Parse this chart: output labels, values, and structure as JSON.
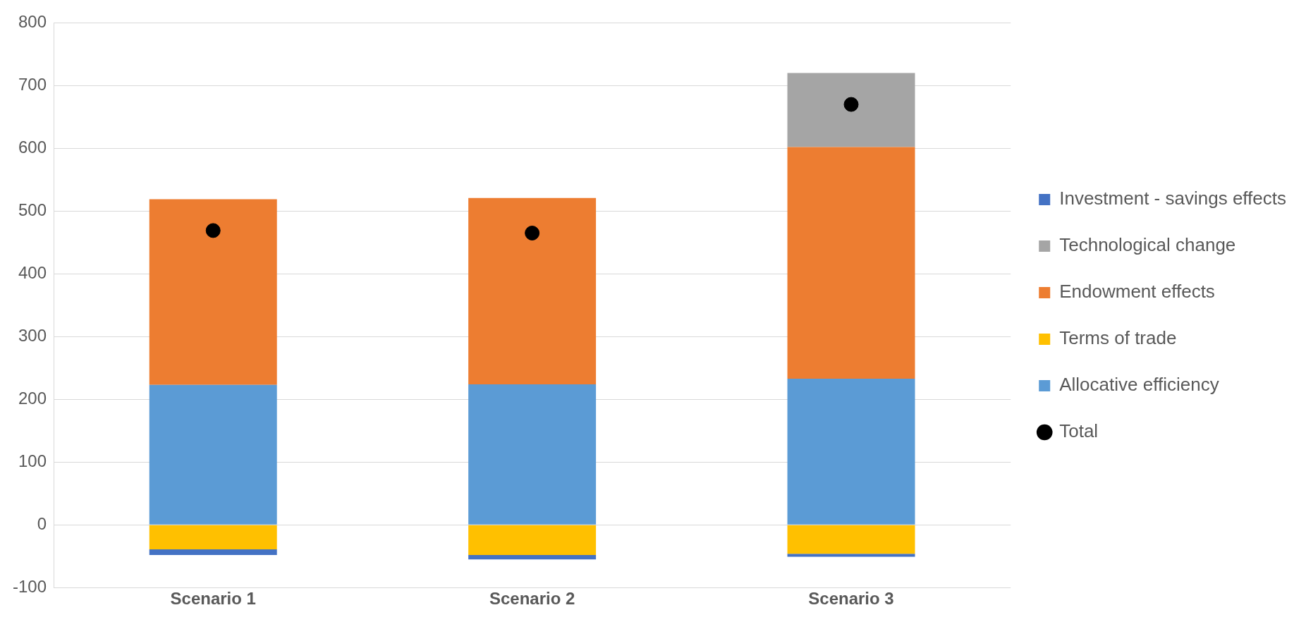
{
  "chart_data": {
    "type": "bar",
    "stacked": true,
    "categories": [
      "Scenario 1",
      "Scenario 2",
      "Scenario 3"
    ],
    "series": [
      {
        "name": "Allocative efficiency",
        "color": "#5b9bd5",
        "values": [
          223,
          224,
          233
        ]
      },
      {
        "name": "Terms of trade",
        "color": "#ffc000",
        "values": [
          -39,
          -48,
          -46
        ]
      },
      {
        "name": "Endowment effects",
        "color": "#ed7d31",
        "values": [
          296,
          297,
          369
        ]
      },
      {
        "name": "Technological change",
        "color": "#a5a5a5",
        "values": [
          null,
          null,
          118
        ]
      },
      {
        "name": "Investment - savings effects",
        "color": "#4472c4",
        "values": [
          -9,
          -7,
          -5
        ]
      },
      {
        "name": "Total",
        "type": "scatter",
        "color": "#000000",
        "x": [
          "Scenario 1",
          "Scenario 2",
          "Scenario 3"
        ],
        "values": [
          469,
          465,
          670
        ]
      }
    ],
    "ylim": [
      -100,
      800
    ],
    "yticks": [
      -100,
      0,
      100,
      200,
      300,
      400,
      500,
      600,
      700,
      800
    ],
    "grid": "y",
    "legend": "right",
    "marker": "circle"
  }
}
